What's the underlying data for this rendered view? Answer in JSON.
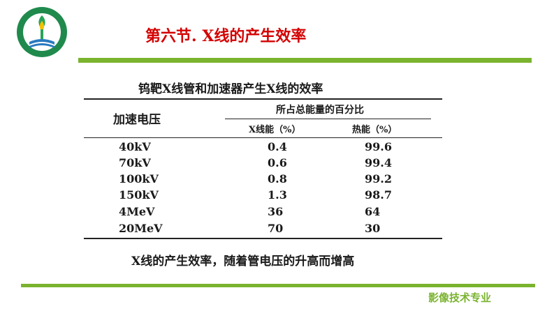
{
  "slide": {
    "title": "第六节. X线的产生效率",
    "footer": "影像技术专业",
    "colors": {
      "title": "#d40000",
      "accent_bar": "#7ab32e",
      "footer": "#7ab32e"
    }
  },
  "logo": {
    "icon": "school-emblem-icon"
  },
  "table": {
    "title": "钨靶X线管和加速器产生X线的效率",
    "headers": {
      "voltage": "加速电压",
      "percent_group": "所占总能量的百分比",
      "xray": "X线能（%）",
      "heat": "热能（%）"
    },
    "rows": [
      {
        "voltage": "40kV",
        "xray": "0.4",
        "heat": "99.6"
      },
      {
        "voltage": "70kV",
        "xray": "0.6",
        "heat": "99.4"
      },
      {
        "voltage": "100kV",
        "xray": "0.8",
        "heat": "99.2"
      },
      {
        "voltage": "150kV",
        "xray": "1.3",
        "heat": "98.7"
      },
      {
        "voltage": "4MeV",
        "xray": "36",
        "heat": "64"
      },
      {
        "voltage": "20MeV",
        "xray": "70",
        "heat": "30"
      }
    ]
  },
  "conclusion": "X线的产生效率，随着管电压的升高而增高"
}
